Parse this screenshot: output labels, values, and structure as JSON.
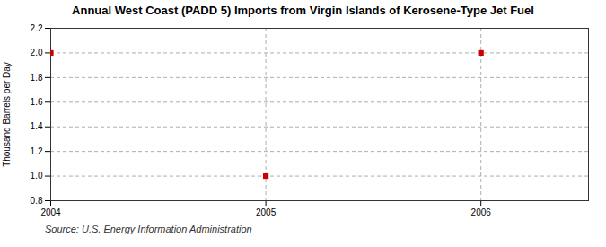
{
  "chart_data": {
    "type": "scatter",
    "title": "Annual West Coast (PADD 5) Imports from Virgin Islands of Kerosene-Type Jet Fuel",
    "ylabel": "Thousand Barrels per Day",
    "source": "Source: U.S. Energy Information Administration",
    "x": [
      2004,
      2005,
      2006
    ],
    "values": [
      2.0,
      1.0,
      2.0
    ],
    "color": "#cc0000",
    "marker": "square",
    "xlim": [
      2004.0,
      2006.5
    ],
    "xticks": [
      2004,
      2005,
      2006
    ],
    "ylim": [
      0.8,
      2.2
    ],
    "yticks": [
      0.8,
      {
        "value": 1.0,
        "label": "1.0"
      },
      1.2,
      1.4,
      1.6,
      1.8,
      {
        "value": 2.0,
        "label": "2.0"
      },
      2.2
    ],
    "grid": true
  }
}
